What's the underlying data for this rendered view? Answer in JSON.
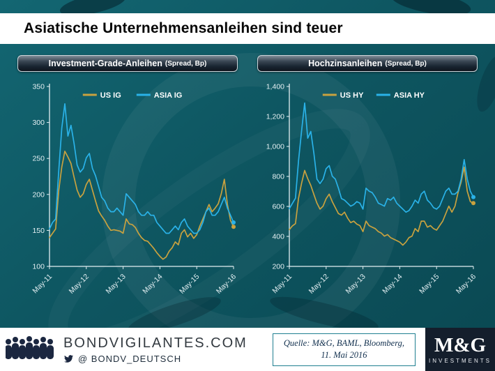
{
  "title": "Asiatische Unternehmensanleihen sind teuer",
  "panels": [
    {
      "header": "Investment-Grade-Anleihen",
      "header_sub": "(Spread, Bp)"
    },
    {
      "header": "Hochzinsanleihen",
      "header_sub": "(Spread, Bp)"
    }
  ],
  "footer": {
    "site": "BONDVIGILANTES.COM",
    "twitter_handle": "@  BONDV_DEUTSCH",
    "source_line1": "Quelle: M&G, BAML, Bloomberg,",
    "source_line2": "11. Mai 2016",
    "logo_main": "M&G",
    "logo_sub": "INVESTMENTS"
  },
  "colors": {
    "background_teal": "#0E5661",
    "us_gold": "#C9A23F",
    "asia_blue": "#2AB2E8",
    "axis": "#E3EFF2",
    "header_pill_border": "#CCD5DA",
    "logo_navy": "#141E2C",
    "source_border_teal": "#1F7F90"
  },
  "chart_data": [
    {
      "type": "line",
      "title": "Investment-Grade-Anleihen (Spread, Bp)",
      "ylabel": "Spread (Bp)",
      "ylim": [
        100,
        350
      ],
      "y_ticks": [
        "100",
        "150",
        "200",
        "250",
        "300",
        "350"
      ],
      "x_tick_labels": [
        "May-11",
        "May-12",
        "May-13",
        "May-14",
        "May-15",
        "May-16"
      ],
      "x_tick_positions": [
        0,
        12,
        24,
        36,
        48,
        60
      ],
      "x_frequency": "monthly from May-11 to May-16",
      "grid": false,
      "legend_position": "top-center",
      "series": [
        {
          "name": "US IG",
          "color": "#C9A23F",
          "values": [
            140,
            146,
            152,
            205,
            238,
            260,
            252,
            243,
            224,
            206,
            196,
            201,
            214,
            221,
            206,
            191,
            177,
            170,
            164,
            156,
            150,
            151,
            150,
            149,
            146,
            166,
            159,
            158,
            154,
            146,
            140,
            136,
            135,
            130,
            125,
            119,
            114,
            110,
            113,
            121,
            126,
            134,
            130,
            146,
            151,
            141,
            146,
            139,
            144,
            156,
            166,
            176,
            186,
            176,
            181,
            187,
            201,
            221,
            186,
            164,
            155
          ]
        },
        {
          "name": "ASIA IG",
          "color": "#2AB2E8",
          "values": [
            152,
            161,
            166,
            232,
            292,
            326,
            281,
            296,
            271,
            241,
            231,
            236,
            251,
            257,
            236,
            226,
            211,
            196,
            191,
            181,
            176,
            176,
            181,
            176,
            171,
            201,
            196,
            191,
            186,
            176,
            171,
            171,
            176,
            171,
            171,
            161,
            156,
            151,
            146,
            146,
            151,
            156,
            151,
            161,
            166,
            156,
            151,
            146,
            146,
            151,
            161,
            176,
            181,
            171,
            171,
            176,
            186,
            196,
            181,
            171,
            161
          ]
        }
      ]
    },
    {
      "type": "line",
      "title": "Hochzinsanleihen (Spread, Bp)",
      "ylabel": "Spread (Bp)",
      "ylim": [
        200,
        1400
      ],
      "y_ticks": [
        "200",
        "400",
        "600",
        "800",
        "1,000",
        "1,200",
        "1,400"
      ],
      "x_tick_labels": [
        "May-11",
        "May-12",
        "May-13",
        "May-14",
        "May-15",
        "May-16"
      ],
      "x_tick_positions": [
        0,
        12,
        24,
        36,
        48,
        60
      ],
      "x_frequency": "monthly from May-11 to May-16",
      "grid": false,
      "legend_position": "top-center",
      "series": [
        {
          "name": "US HY",
          "color": "#C9A23F",
          "values": [
            445,
            470,
            485,
            655,
            755,
            840,
            785,
            740,
            680,
            622,
            582,
            602,
            652,
            682,
            632,
            592,
            552,
            542,
            562,
            522,
            492,
            502,
            482,
            472,
            432,
            502,
            472,
            462,
            452,
            432,
            422,
            402,
            412,
            392,
            382,
            372,
            362,
            342,
            362,
            392,
            402,
            452,
            432,
            502,
            502,
            462,
            472,
            452,
            442,
            472,
            502,
            552,
            602,
            562,
            602,
            692,
            762,
            862,
            702,
            632,
            622
          ]
        },
        {
          "name": "ASIA HY",
          "color": "#2AB2E8",
          "values": [
            585,
            620,
            655,
            905,
            1105,
            1290,
            1055,
            1100,
            955,
            782,
            752,
            782,
            852,
            872,
            802,
            782,
            722,
            652,
            642,
            622,
            602,
            612,
            632,
            622,
            582,
            722,
            702,
            692,
            662,
            622,
            612,
            602,
            652,
            642,
            662,
            622,
            602,
            582,
            562,
            572,
            602,
            642,
            622,
            682,
            702,
            642,
            622,
            592,
            582,
            602,
            652,
            702,
            722,
            682,
            682,
            702,
            782,
            912,
            782,
            702,
            662
          ]
        }
      ]
    }
  ]
}
